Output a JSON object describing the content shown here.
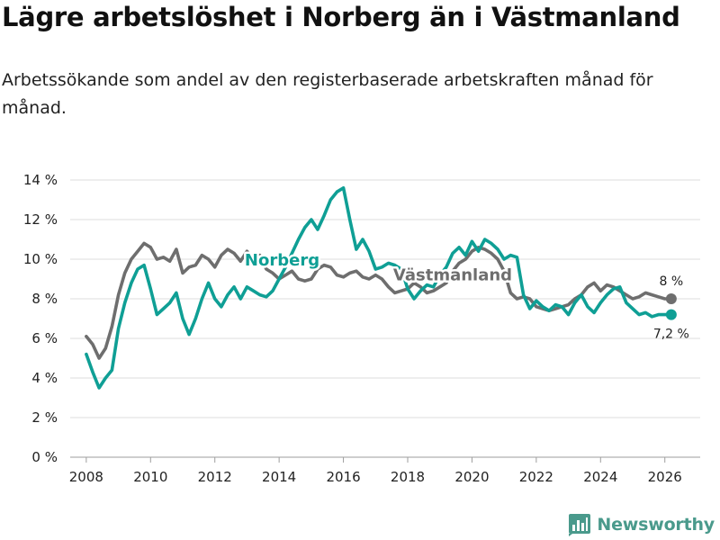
{
  "title": "Lägre arbetslöshet i Norberg än i Västmanland",
  "subtitle": "Arbetssökande som andel av den registerbaserade arbetskraften månad för månad.",
  "brand": {
    "name": "Newsworthy",
    "icon": "newsworthy-bar-chart-icon",
    "color": "#4a9a8c"
  },
  "chart_data": {
    "type": "line",
    "title": "Lägre arbetslöshet i Norberg än i Västmanland",
    "xlabel": "",
    "ylabel": "",
    "xlim": [
      2007.5,
      2027.1
    ],
    "ylim": [
      0,
      14
    ],
    "x_ticks": [
      2008,
      2010,
      2012,
      2014,
      2016,
      2018,
      2020,
      2022,
      2024,
      2026
    ],
    "x_tick_labels": [
      "2008",
      "2010",
      "2012",
      "2014",
      "2016",
      "2018",
      "2020",
      "2022",
      "2024",
      "2026"
    ],
    "y_ticks": [
      0,
      2,
      4,
      6,
      8,
      10,
      12,
      14
    ],
    "y_tick_labels": [
      "0 %",
      "2 %",
      "4 %",
      "6 %",
      "8 %",
      "10 %",
      "12 %",
      "14 %"
    ],
    "grid": true,
    "series": [
      {
        "name": "Västmanland",
        "color": "#6e6e6e",
        "label": "Västmanland",
        "end_label": "8 %",
        "x": [
          2008.0,
          2008.2,
          2008.4,
          2008.6,
          2008.8,
          2009.0,
          2009.2,
          2009.4,
          2009.6,
          2009.8,
          2010.0,
          2010.2,
          2010.4,
          2010.6,
          2010.8,
          2011.0,
          2011.2,
          2011.4,
          2011.6,
          2011.8,
          2012.0,
          2012.2,
          2012.4,
          2012.6,
          2012.8,
          2013.0,
          2013.2,
          2013.4,
          2013.6,
          2013.8,
          2014.0,
          2014.2,
          2014.4,
          2014.6,
          2014.8,
          2015.0,
          2015.2,
          2015.4,
          2015.6,
          2015.8,
          2016.0,
          2016.2,
          2016.4,
          2016.6,
          2016.8,
          2017.0,
          2017.2,
          2017.4,
          2017.6,
          2017.8,
          2018.0,
          2018.2,
          2018.4,
          2018.6,
          2018.8,
          2019.0,
          2019.2,
          2019.4,
          2019.6,
          2019.8,
          2020.0,
          2020.2,
          2020.4,
          2020.6,
          2020.8,
          2021.0,
          2021.2,
          2021.4,
          2021.6,
          2021.8,
          2022.0,
          2022.2,
          2022.4,
          2022.6,
          2022.8,
          2023.0,
          2023.2,
          2023.4,
          2023.6,
          2023.8,
          2024.0,
          2024.2,
          2024.4,
          2024.6,
          2024.8,
          2025.0,
          2025.2,
          2025.4,
          2025.6,
          2025.8,
          2026.0,
          2026.2
        ],
        "values": [
          6.1,
          5.7,
          5.0,
          5.5,
          6.6,
          8.2,
          9.3,
          10.0,
          10.4,
          10.8,
          10.6,
          10.0,
          10.1,
          9.9,
          10.5,
          9.3,
          9.6,
          9.7,
          10.2,
          10.0,
          9.6,
          10.2,
          10.5,
          10.3,
          9.9,
          10.4,
          10.0,
          10.2,
          9.5,
          9.3,
          9.0,
          9.2,
          9.4,
          9.0,
          8.9,
          9.0,
          9.5,
          9.7,
          9.6,
          9.2,
          9.1,
          9.3,
          9.4,
          9.1,
          9.0,
          9.2,
          9.0,
          8.6,
          8.3,
          8.4,
          8.5,
          8.8,
          8.6,
          8.3,
          8.4,
          8.6,
          8.8,
          9.4,
          9.8,
          10.0,
          10.4,
          10.6,
          10.5,
          10.3,
          10.0,
          9.4,
          8.3,
          8.0,
          8.1,
          8.0,
          7.6,
          7.5,
          7.4,
          7.5,
          7.6,
          7.7,
          8.0,
          8.2,
          8.6,
          8.8,
          8.4,
          8.7,
          8.6,
          8.4,
          8.2,
          8.0,
          8.1,
          8.3,
          8.2,
          8.1,
          8.0,
          8.0
        ]
      },
      {
        "name": "Norberg",
        "color": "#0f9f95",
        "label": "Norberg",
        "end_label": "7,2 %",
        "x": [
          2008.0,
          2008.2,
          2008.4,
          2008.6,
          2008.8,
          2009.0,
          2009.2,
          2009.4,
          2009.6,
          2009.8,
          2010.0,
          2010.2,
          2010.4,
          2010.6,
          2010.8,
          2011.0,
          2011.2,
          2011.4,
          2011.6,
          2011.8,
          2012.0,
          2012.2,
          2012.4,
          2012.6,
          2012.8,
          2013.0,
          2013.2,
          2013.4,
          2013.6,
          2013.8,
          2014.0,
          2014.2,
          2014.4,
          2014.6,
          2014.8,
          2015.0,
          2015.2,
          2015.4,
          2015.6,
          2015.8,
          2016.0,
          2016.2,
          2016.4,
          2016.6,
          2016.8,
          2017.0,
          2017.2,
          2017.4,
          2017.6,
          2017.8,
          2018.0,
          2018.2,
          2018.4,
          2018.6,
          2018.8,
          2019.0,
          2019.2,
          2019.4,
          2019.6,
          2019.8,
          2020.0,
          2020.2,
          2020.4,
          2020.6,
          2020.8,
          2021.0,
          2021.2,
          2021.4,
          2021.6,
          2021.8,
          2022.0,
          2022.2,
          2022.4,
          2022.6,
          2022.8,
          2023.0,
          2023.2,
          2023.4,
          2023.6,
          2023.8,
          2024.0,
          2024.2,
          2024.4,
          2024.6,
          2024.8,
          2025.0,
          2025.2,
          2025.4,
          2025.6,
          2025.8,
          2026.0,
          2026.2
        ],
        "values": [
          5.2,
          4.3,
          3.5,
          4.0,
          4.4,
          6.5,
          7.8,
          8.8,
          9.5,
          9.7,
          8.5,
          7.2,
          7.5,
          7.8,
          8.3,
          7.0,
          6.2,
          7.0,
          8.0,
          8.8,
          8.0,
          7.6,
          8.2,
          8.6,
          8.0,
          8.6,
          8.4,
          8.2,
          8.1,
          8.4,
          9.0,
          9.6,
          10.3,
          11.0,
          11.6,
          12.0,
          11.5,
          12.2,
          13.0,
          13.4,
          13.6,
          12.0,
          10.5,
          11.0,
          10.4,
          9.5,
          9.6,
          9.8,
          9.7,
          9.5,
          8.5,
          8.0,
          8.4,
          8.7,
          8.6,
          9.2,
          9.6,
          10.3,
          10.6,
          10.2,
          10.9,
          10.4,
          11.0,
          10.8,
          10.5,
          10.0,
          10.2,
          10.1,
          8.2,
          7.5,
          7.9,
          7.6,
          7.4,
          7.7,
          7.6,
          7.2,
          7.8,
          8.2,
          7.6,
          7.3,
          7.8,
          8.2,
          8.5,
          8.6,
          7.8,
          7.5,
          7.2,
          7.3,
          7.1,
          7.2,
          7.2,
          7.2
        ]
      }
    ]
  }
}
